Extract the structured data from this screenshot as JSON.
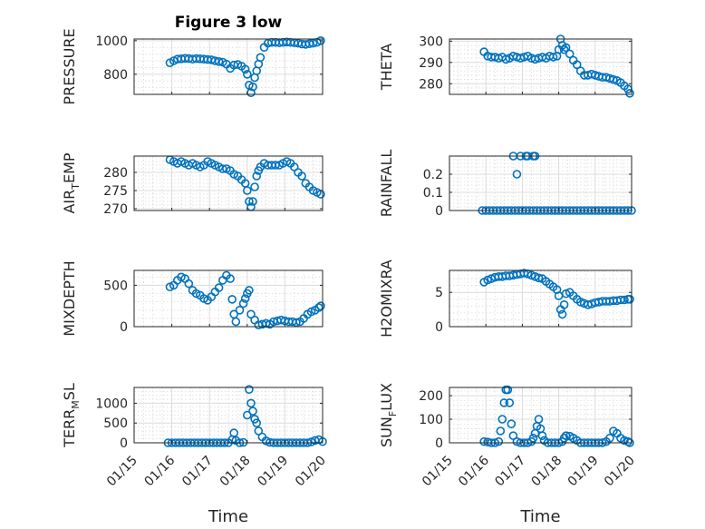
{
  "chart_data": [
    {
      "type": "scatter",
      "title": "Figure 3 low",
      "ylabel": "PRESSURE",
      "xlabel": "",
      "ylim": [
        680,
        1010
      ],
      "yticks": [
        800,
        1000
      ],
      "ytick_labels": [
        "800",
        "1000"
      ],
      "grid": true,
      "x": [
        0.95,
        1.05,
        1.15,
        1.25,
        1.35,
        1.45,
        1.55,
        1.65,
        1.75,
        1.85,
        1.95,
        2.05,
        2.15,
        2.25,
        2.35,
        2.45,
        2.55,
        2.65,
        2.75,
        2.85,
        2.95,
        3.0,
        3.05,
        3.1,
        3.15,
        3.2,
        3.25,
        3.3,
        3.35,
        3.45,
        3.55,
        3.65,
        3.75,
        3.85,
        3.95,
        4.05,
        4.15,
        4.25,
        4.35,
        4.45,
        4.55,
        4.65,
        4.75,
        4.85,
        4.95
      ],
      "y": [
        868,
        880,
        890,
        892,
        895,
        893,
        890,
        893,
        892,
        890,
        888,
        886,
        880,
        876,
        872,
        860,
        835,
        855,
        858,
        848,
        830,
        800,
        735,
        690,
        725,
        780,
        820,
        860,
        900,
        960,
        985,
        990,
        990,
        988,
        990,
        992,
        990,
        988,
        985,
        980,
        978,
        982,
        985,
        990,
        1000
      ]
    },
    {
      "type": "scatter",
      "ylabel": "THETA",
      "xlabel": "",
      "ylim": [
        275,
        301
      ],
      "yticks": [
        280,
        290,
        300
      ],
      "ytick_labels": [
        "280",
        "290",
        "300"
      ],
      "grid": true,
      "x": [
        0.95,
        1.05,
        1.15,
        1.25,
        1.35,
        1.45,
        1.55,
        1.65,
        1.75,
        1.85,
        1.95,
        2.05,
        2.15,
        2.25,
        2.35,
        2.45,
        2.55,
        2.65,
        2.75,
        2.85,
        2.95,
        3.0,
        3.05,
        3.1,
        3.15,
        3.2,
        3.3,
        3.4,
        3.5,
        3.6,
        3.7,
        3.8,
        3.9,
        4.0,
        4.1,
        4.2,
        4.3,
        4.4,
        4.5,
        4.6,
        4.7,
        4.8,
        4.9,
        4.95
      ],
      "y": [
        295,
        293,
        292.5,
        292.5,
        292,
        292.5,
        291.5,
        292,
        293,
        292.5,
        292,
        292.5,
        293,
        292,
        291.5,
        292,
        292.5,
        292,
        293,
        292.5,
        293,
        296,
        301,
        298,
        296,
        297,
        294,
        291,
        289,
        286,
        284,
        284,
        284.5,
        284,
        283.5,
        283,
        283,
        282.5,
        282,
        281.5,
        280.5,
        279,
        277.5,
        275.5
      ]
    },
    {
      "type": "scatter",
      "ylabel": "AIR_T_EMP",
      "xlabel": "",
      "ylim": [
        269.5,
        284.5
      ],
      "yticks": [
        270,
        275,
        280
      ],
      "ytick_labels": [
        "270",
        "275",
        "280"
      ],
      "grid": true,
      "x": [
        0.95,
        1.05,
        1.15,
        1.25,
        1.35,
        1.45,
        1.55,
        1.65,
        1.75,
        1.85,
        1.95,
        2.05,
        2.15,
        2.25,
        2.35,
        2.45,
        2.55,
        2.65,
        2.75,
        2.85,
        2.95,
        3.0,
        3.05,
        3.1,
        3.15,
        3.2,
        3.25,
        3.3,
        3.35,
        3.45,
        3.55,
        3.65,
        3.75,
        3.85,
        3.95,
        4.05,
        4.15,
        4.25,
        4.35,
        4.45,
        4.55,
        4.65,
        4.75,
        4.85,
        4.95
      ],
      "y": [
        283.5,
        283,
        282.5,
        283,
        282.5,
        282,
        282.5,
        282,
        281.5,
        282,
        283,
        282.5,
        282,
        281.5,
        281,
        281,
        280.5,
        279.5,
        279,
        278,
        277,
        275,
        272,
        270.5,
        272,
        276,
        279,
        280.5,
        281.5,
        282.5,
        282,
        282,
        282,
        282,
        282.5,
        283,
        282.5,
        281.5,
        280,
        279,
        277,
        276,
        275,
        274.5,
        274
      ]
    },
    {
      "type": "scatter",
      "ylabel": "RAINFALL",
      "xlabel": "",
      "ylim": [
        0,
        0.3
      ],
      "yticks": [
        0,
        0.1,
        0.2
      ],
      "ytick_labels": [
        "0",
        "0.1",
        "0.2"
      ],
      "grid": true,
      "x": [
        0.9,
        1.0,
        1.1,
        1.2,
        1.3,
        1.4,
        1.5,
        1.6,
        1.7,
        1.8,
        1.9,
        2.0,
        2.1,
        2.2,
        2.3,
        2.4,
        2.5,
        2.6,
        2.7,
        2.8,
        2.9,
        3.0,
        3.1,
        3.2,
        3.3,
        3.4,
        3.5,
        3.6,
        3.7,
        3.8,
        3.9,
        4.0,
        4.1,
        4.2,
        4.3,
        4.4,
        4.5,
        4.6,
        4.7,
        4.8,
        4.9,
        5.0,
        1.75,
        1.85,
        1.95,
        2.1,
        2.15,
        2.3,
        2.35
      ],
      "y": [
        0,
        0,
        0,
        0,
        0,
        0,
        0,
        0,
        0,
        0,
        0,
        0,
        0,
        0,
        0,
        0,
        0,
        0,
        0,
        0,
        0,
        0,
        0,
        0,
        0,
        0,
        0,
        0,
        0,
        0,
        0,
        0,
        0,
        0,
        0,
        0,
        0,
        0,
        0,
        0,
        0,
        0,
        0.3,
        0.2,
        0.3,
        0.3,
        0.3,
        0.3,
        0.3
      ]
    },
    {
      "type": "scatter",
      "ylabel": "MIXDEPTH",
      "xlabel": "",
      "ylim": [
        0,
        680
      ],
      "yticks": [
        0,
        500
      ],
      "ytick_labels": [
        "0",
        "500"
      ],
      "grid": true,
      "x": [
        0.95,
        1.05,
        1.15,
        1.25,
        1.35,
        1.45,
        1.55,
        1.65,
        1.75,
        1.85,
        1.95,
        2.05,
        2.15,
        2.25,
        2.35,
        2.45,
        2.55,
        2.6,
        2.65,
        2.7,
        2.8,
        2.9,
        2.95,
        3.0,
        3.05,
        3.1,
        3.2,
        3.3,
        3.4,
        3.5,
        3.6,
        3.7,
        3.8,
        3.9,
        4.0,
        4.1,
        4.2,
        4.3,
        4.4,
        4.5,
        4.6,
        4.7,
        4.8,
        4.9,
        4.95
      ],
      "y": [
        480,
        500,
        560,
        600,
        580,
        520,
        440,
        400,
        380,
        340,
        320,
        360,
        420,
        470,
        560,
        620,
        580,
        330,
        150,
        60,
        200,
        280,
        340,
        400,
        440,
        150,
        80,
        20,
        30,
        40,
        30,
        60,
        70,
        80,
        70,
        60,
        60,
        50,
        60,
        100,
        150,
        180,
        200,
        230,
        250
      ]
    },
    {
      "type": "scatter",
      "ylabel": "H2OMIXRA",
      "xlabel": "",
      "ylim": [
        0,
        8.2
      ],
      "yticks": [
        0,
        5
      ],
      "ytick_labels": [
        "0",
        "5"
      ],
      "grid": true,
      "x": [
        0.95,
        1.05,
        1.15,
        1.25,
        1.35,
        1.45,
        1.55,
        1.65,
        1.75,
        1.85,
        1.95,
        2.05,
        2.15,
        2.25,
        2.35,
        2.45,
        2.55,
        2.65,
        2.75,
        2.85,
        2.95,
        3.0,
        3.05,
        3.1,
        3.15,
        3.2,
        3.3,
        3.4,
        3.5,
        3.6,
        3.7,
        3.8,
        3.9,
        4.0,
        4.1,
        4.2,
        4.3,
        4.4,
        4.5,
        4.6,
        4.7,
        4.8,
        4.9,
        4.95
      ],
      "y": [
        6.5,
        6.8,
        7.0,
        7.2,
        7.3,
        7.3,
        7.4,
        7.4,
        7.5,
        7.6,
        7.7,
        7.8,
        7.7,
        7.5,
        7.3,
        7.1,
        7.0,
        6.6,
        6.2,
        5.8,
        5.4,
        4.5,
        2.5,
        1.8,
        3.2,
        4.8,
        5.0,
        4.5,
        4.0,
        3.6,
        3.4,
        3.2,
        3.3,
        3.5,
        3.6,
        3.7,
        3.7,
        3.7,
        3.8,
        3.8,
        3.9,
        3.9,
        4.0,
        4.0
      ]
    },
    {
      "type": "scatter",
      "ylabel": "TERR_M_SL",
      "xlabel": "Time",
      "ylim": [
        0,
        1400
      ],
      "yticks": [
        0,
        500,
        1000
      ],
      "ytick_labels": [
        "0",
        "500",
        "1000"
      ],
      "grid": true,
      "x": [
        0.9,
        1.0,
        1.1,
        1.2,
        1.3,
        1.4,
        1.5,
        1.6,
        1.7,
        1.8,
        1.9,
        2.0,
        2.1,
        2.2,
        2.3,
        2.4,
        2.5,
        2.6,
        2.65,
        2.7,
        2.8,
        2.9,
        3.0,
        3.05,
        3.1,
        3.15,
        3.2,
        3.25,
        3.3,
        3.4,
        3.5,
        3.6,
        3.7,
        3.8,
        3.9,
        4.0,
        4.1,
        4.2,
        4.3,
        4.4,
        4.5,
        4.6,
        4.7,
        4.8,
        4.9,
        5.0
      ],
      "y": [
        0,
        0,
        0,
        0,
        0,
        0,
        0,
        0,
        0,
        0,
        0,
        0,
        0,
        0,
        0,
        0,
        0,
        80,
        250,
        60,
        0,
        10,
        700,
        1350,
        1000,
        800,
        600,
        500,
        300,
        150,
        50,
        10,
        0,
        0,
        0,
        0,
        0,
        0,
        0,
        0,
        0,
        0,
        20,
        60,
        80,
        30
      ],
      "xticks": [
        0,
        1,
        2,
        3,
        4,
        5
      ],
      "xtick_labels": [
        "01/15",
        "01/16",
        "01/17",
        "01/18",
        "01/19",
        "01/20"
      ]
    },
    {
      "type": "scatter",
      "ylabel": "SUN_F_LUX",
      "xlabel": "Time",
      "ylim": [
        0,
        235
      ],
      "yticks": [
        0,
        100,
        200
      ],
      "ytick_labels": [
        "0",
        "100",
        "200"
      ],
      "grid": true,
      "x": [
        0.95,
        1.05,
        1.15,
        1.25,
        1.35,
        1.4,
        1.45,
        1.5,
        1.55,
        1.6,
        1.65,
        1.7,
        1.75,
        1.85,
        1.95,
        2.05,
        2.15,
        2.25,
        2.3,
        2.35,
        2.4,
        2.45,
        2.5,
        2.55,
        2.6,
        2.7,
        2.8,
        2.9,
        3.0,
        3.1,
        3.15,
        3.2,
        3.3,
        3.4,
        3.5,
        3.6,
        3.7,
        3.8,
        3.9,
        4.0,
        4.1,
        4.2,
        4.3,
        4.4,
        4.5,
        4.6,
        4.7,
        4.8,
        4.9,
        4.95
      ],
      "y": [
        5,
        3,
        0,
        0,
        5,
        50,
        100,
        170,
        225,
        225,
        170,
        80,
        30,
        5,
        0,
        0,
        0,
        5,
        20,
        40,
        70,
        100,
        60,
        30,
        10,
        0,
        0,
        0,
        0,
        5,
        20,
        30,
        28,
        20,
        10,
        0,
        0,
        0,
        0,
        0,
        0,
        0,
        5,
        20,
        50,
        40,
        20,
        10,
        5,
        0
      ],
      "xticks": [
        0,
        1,
        2,
        3,
        4,
        5
      ],
      "xtick_labels": [
        "01/15",
        "01/16",
        "01/17",
        "01/18",
        "01/19",
        "01/20"
      ]
    }
  ],
  "colors": {
    "marker": "#0072BD",
    "axis": "#262626",
    "grid": "#dcdcdc"
  }
}
